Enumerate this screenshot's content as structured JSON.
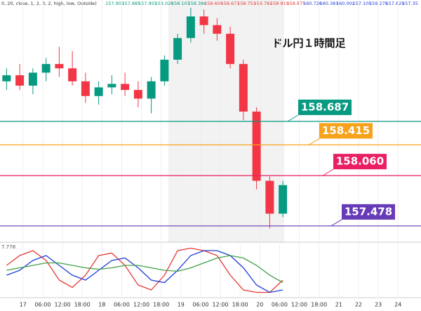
{
  "header": {
    "prefix": "0, 20, close, 1, 2, 3, 2, high, low, Outside)",
    "values": [
      "157.900",
      "157.885",
      "157.955",
      "158.028",
      "158.107",
      "158.384",
      "158.604",
      "158.677",
      "158.753",
      "158.782",
      "158.819",
      "158.875",
      "160.726",
      "160.381",
      "160.002",
      "157.105",
      "159.278",
      "157.829",
      "157.35"
    ]
  },
  "chart_data": [
    {
      "type": "candlestick",
      "title": "ドル円１時間足",
      "x": [
        2,
        6,
        10,
        14,
        18,
        22,
        26,
        30,
        34,
        38,
        42,
        46,
        50,
        54,
        58,
        62,
        66,
        70,
        74,
        78,
        82,
        86
      ],
      "open": [
        159.15,
        159.22,
        159.1,
        159.25,
        159.35,
        159.3,
        159.15,
        158.98,
        159.08,
        159.12,
        159.05,
        158.95,
        159.15,
        159.4,
        159.65,
        159.9,
        159.8,
        159.7,
        159.35,
        158.8,
        158.0,
        157.62
      ],
      "high": [
        159.3,
        159.35,
        159.3,
        159.42,
        159.55,
        159.5,
        159.25,
        159.15,
        159.22,
        159.25,
        159.15,
        159.2,
        159.45,
        159.7,
        160.0,
        159.98,
        159.88,
        159.78,
        159.4,
        158.85,
        158.05,
        158.0
      ],
      "low": [
        159.05,
        159.05,
        159.0,
        159.15,
        159.2,
        159.1,
        158.9,
        158.88,
        159.0,
        158.98,
        158.85,
        158.78,
        159.1,
        159.35,
        159.6,
        159.7,
        159.62,
        159.3,
        158.7,
        157.9,
        157.45,
        157.58
      ],
      "close": [
        159.22,
        159.1,
        159.25,
        159.35,
        159.3,
        159.15,
        158.98,
        159.08,
        159.12,
        159.05,
        158.95,
        159.15,
        159.4,
        159.65,
        159.9,
        159.8,
        159.7,
        159.35,
        158.8,
        158.0,
        157.62,
        157.95
      ],
      "up_color": "#089981",
      "down_color": "#f23645",
      "xlim": [
        0,
        128
      ],
      "ylim": [
        157.29,
        160.09
      ],
      "xticks": [
        {
          "value": 7,
          "label": "17"
        },
        {
          "value": 13,
          "label": "06:00"
        },
        {
          "value": 19,
          "label": "12:00"
        },
        {
          "value": 25,
          "label": "18:00"
        },
        {
          "value": 31,
          "label": "18"
        },
        {
          "value": 37,
          "label": "06:00"
        },
        {
          "value": 43,
          "label": "12:00"
        },
        {
          "value": 49,
          "label": "18:00"
        },
        {
          "value": 55,
          "label": "19"
        },
        {
          "value": 61,
          "label": "06:00"
        },
        {
          "value": 67,
          "label": "12:00"
        },
        {
          "value": 73,
          "label": "18:00"
        },
        {
          "value": 79,
          "label": "20"
        },
        {
          "value": 85,
          "label": "06:00"
        },
        {
          "value": 91,
          "label": "12:00"
        },
        {
          "value": 97,
          "label": "18:00"
        },
        {
          "value": 103,
          "label": "21"
        },
        {
          "value": 109,
          "label": "22"
        },
        {
          "value": 115,
          "label": "23"
        },
        {
          "value": 121,
          "label": "24"
        }
      ],
      "levels": [
        {
          "value": 158.687,
          "label": "158.687",
          "color": "#089981"
        },
        {
          "value": 158.415,
          "label": "158.415",
          "color": "#f7a21b"
        },
        {
          "value": 158.06,
          "label": "158.060",
          "color": "#e91e63"
        },
        {
          "value": 157.478,
          "label": "157.478",
          "color": "#673ab7"
        }
      ],
      "grid": true
    },
    {
      "type": "line",
      "readout": "7.778",
      "x": [
        2,
        6,
        10,
        14,
        18,
        22,
        26,
        30,
        34,
        38,
        42,
        46,
        50,
        54,
        58,
        62,
        66,
        70,
        74,
        78,
        82,
        86
      ],
      "series": [
        {
          "color": "#e53935",
          "values": [
            60,
            80,
            90,
            70,
            30,
            15,
            40,
            80,
            85,
            60,
            20,
            10,
            40,
            90,
            95,
            90,
            80,
            40,
            10,
            5,
            5,
            30
          ]
        },
        {
          "color": "#1e3fd8",
          "values": [
            40,
            50,
            70,
            80,
            60,
            40,
            30,
            50,
            70,
            75,
            55,
            30,
            25,
            50,
            80,
            90,
            90,
            80,
            55,
            20,
            5,
            10
          ]
        },
        {
          "color": "#43a047",
          "values": [
            50,
            55,
            60,
            65,
            65,
            60,
            55,
            52,
            55,
            60,
            60,
            55,
            50,
            48,
            55,
            65,
            75,
            80,
            75,
            60,
            40,
            25
          ]
        }
      ],
      "xlim": [
        0,
        128
      ],
      "ylim": [
        0,
        100
      ]
    }
  ]
}
